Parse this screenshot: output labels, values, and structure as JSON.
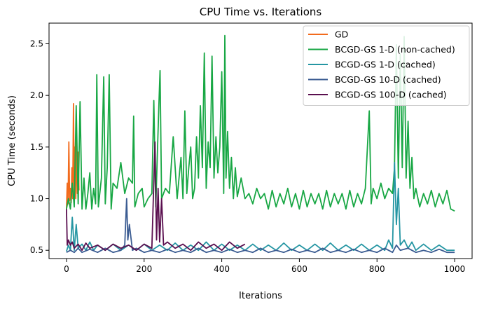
{
  "chart_data": {
    "type": "line",
    "title": "CPU Time vs. Iterations",
    "xlabel": "Iterations",
    "ylabel": "CPU Time (seconds)",
    "xlim": [
      -45,
      1045
    ],
    "ylim": [
      0.42,
      2.7
    ],
    "xticks": [
      0,
      200,
      400,
      600,
      800,
      1000
    ],
    "yticks": [
      0.5,
      1.0,
      1.5,
      2.0,
      2.5
    ],
    "xtick_labels": [
      "0",
      "200",
      "400",
      "600",
      "800",
      "1000"
    ],
    "ytick_labels": [
      "0.5",
      "1.0",
      "1.5",
      "2.0",
      "2.5"
    ],
    "legend_position": "top-right",
    "grid": false,
    "series": [
      {
        "name": "GD",
        "color": "#f26b1d",
        "x": [
          0,
          2,
          4,
          6,
          8,
          10,
          12,
          14,
          16,
          18,
          20,
          22,
          24,
          26,
          28,
          30,
          32
        ],
        "y": [
          0.9,
          1.15,
          0.95,
          1.55,
          0.98,
          1.1,
          0.96,
          1.3,
          1.0,
          1.92,
          1.02,
          1.5,
          1.0,
          1.6,
          1.05,
          1.45,
          1.08
        ]
      },
      {
        "name": "BCGD-GS 1-D (non-cached)",
        "color": "#18a744",
        "x": [
          0,
          5,
          10,
          15,
          20,
          25,
          30,
          35,
          40,
          45,
          50,
          55,
          60,
          65,
          70,
          75,
          78,
          82,
          90,
          96,
          100,
          105,
          110,
          115,
          120,
          130,
          140,
          150,
          160,
          170,
          173,
          176,
          185,
          195,
          200,
          210,
          220,
          225,
          230,
          235,
          238,
          241,
          245,
          255,
          265,
          275,
          285,
          290,
          295,
          300,
          305,
          310,
          315,
          320,
          325,
          330,
          335,
          340,
          345,
          350,
          355,
          360,
          365,
          370,
          375,
          380,
          385,
          390,
          395,
          400,
          405,
          408,
          411,
          415,
          420,
          425,
          430,
          435,
          440,
          450,
          460,
          470,
          480,
          490,
          500,
          510,
          520,
          530,
          540,
          550,
          560,
          570,
          580,
          590,
          600,
          610,
          620,
          630,
          640,
          650,
          660,
          670,
          680,
          690,
          700,
          710,
          720,
          730,
          740,
          750,
          760,
          770,
          780,
          785,
          790,
          800,
          810,
          820,
          830,
          840,
          845,
          850,
          855,
          860,
          865,
          870,
          875,
          880,
          885,
          890,
          895,
          900,
          910,
          920,
          930,
          940,
          950,
          960,
          970,
          980,
          990,
          1000
        ],
        "y": [
          0.9,
          1.0,
          0.9,
          1.15,
          0.92,
          1.9,
          0.95,
          1.94,
          0.9,
          1.2,
          0.9,
          1.05,
          1.25,
          0.9,
          1.1,
          0.95,
          2.2,
          0.92,
          1.2,
          2.18,
          0.95,
          1.3,
          2.2,
          0.9,
          1.15,
          1.1,
          1.35,
          1.05,
          1.2,
          1.15,
          1.8,
          0.92,
          1.05,
          1.1,
          0.92,
          1.0,
          1.05,
          1.95,
          0.92,
          1.55,
          1.9,
          2.24,
          1.0,
          1.1,
          1.05,
          1.6,
          1.0,
          1.2,
          1.4,
          1.0,
          1.85,
          1.05,
          1.3,
          1.5,
          1.0,
          1.1,
          1.6,
          1.2,
          1.9,
          1.3,
          2.41,
          1.1,
          1.55,
          1.3,
          2.38,
          1.2,
          1.6,
          1.25,
          1.5,
          2.23,
          1.05,
          2.58,
          1.2,
          1.65,
          1.1,
          1.4,
          1.0,
          1.3,
          1.02,
          1.2,
          1.0,
          1.05,
          0.95,
          1.1,
          1.0,
          1.05,
          0.9,
          1.08,
          0.92,
          1.05,
          0.95,
          1.1,
          0.92,
          1.05,
          0.9,
          1.08,
          0.92,
          1.05,
          0.95,
          1.05,
          0.9,
          1.08,
          0.92,
          1.05,
          0.95,
          1.05,
          0.9,
          1.08,
          0.92,
          1.05,
          0.95,
          1.1,
          1.85,
          0.95,
          1.1,
          1.0,
          1.15,
          1.0,
          1.1,
          1.05,
          1.3,
          2.49,
          1.2,
          2.4,
          1.3,
          2.57,
          1.2,
          1.75,
          1.1,
          1.4,
          1.0,
          1.1,
          0.92,
          1.05,
          0.95,
          1.08,
          0.92,
          1.05,
          0.95,
          1.08,
          0.9,
          0.88
        ]
      },
      {
        "name": "BCGD-GS 1-D (cached)",
        "color": "#2596a3",
        "x": [
          0,
          5,
          10,
          15,
          20,
          25,
          30,
          40,
          50,
          60,
          70,
          80,
          100,
          120,
          140,
          160,
          180,
          200,
          220,
          240,
          260,
          280,
          300,
          320,
          340,
          360,
          380,
          400,
          420,
          440,
          460,
          480,
          500,
          520,
          540,
          560,
          580,
          600,
          620,
          640,
          660,
          680,
          700,
          720,
          740,
          760,
          780,
          800,
          820,
          830,
          840,
          845,
          850,
          855,
          860,
          870,
          880,
          890,
          900,
          920,
          940,
          960,
          980,
          1000
        ],
        "y": [
          0.49,
          0.55,
          0.5,
          0.82,
          0.5,
          0.75,
          0.52,
          0.56,
          0.5,
          0.58,
          0.5,
          0.55,
          0.5,
          0.56,
          0.5,
          0.55,
          0.5,
          0.56,
          0.5,
          0.55,
          0.5,
          0.57,
          0.5,
          0.55,
          0.5,
          0.58,
          0.5,
          0.56,
          0.5,
          0.55,
          0.5,
          0.56,
          0.5,
          0.55,
          0.5,
          0.57,
          0.5,
          0.55,
          0.5,
          0.56,
          0.5,
          0.57,
          0.5,
          0.55,
          0.5,
          0.56,
          0.5,
          0.55,
          0.5,
          0.6,
          0.52,
          1.35,
          0.75,
          1.1,
          0.55,
          0.6,
          0.52,
          0.58,
          0.5,
          0.56,
          0.5,
          0.55,
          0.5,
          0.5
        ]
      },
      {
        "name": "BCGD-GS 10-D (cached)",
        "color": "#3b5c92",
        "x": [
          0,
          10,
          20,
          30,
          40,
          60,
          80,
          100,
          120,
          140,
          150,
          155,
          158,
          162,
          170,
          180,
          200,
          220,
          240,
          260,
          280,
          300,
          320,
          340,
          360,
          380,
          400,
          420,
          440,
          460,
          480,
          500,
          520,
          540,
          560,
          580,
          600,
          620,
          640,
          660,
          680,
          700,
          720,
          740,
          760,
          780,
          800,
          820,
          840,
          850,
          860,
          880,
          900,
          920,
          940,
          960,
          980,
          1000
        ],
        "y": [
          0.48,
          0.5,
          0.48,
          0.52,
          0.48,
          0.51,
          0.48,
          0.52,
          0.48,
          0.5,
          0.55,
          1.0,
          0.6,
          0.75,
          0.5,
          0.52,
          0.48,
          0.5,
          0.48,
          0.51,
          0.48,
          0.5,
          0.48,
          0.52,
          0.48,
          0.5,
          0.48,
          0.51,
          0.48,
          0.5,
          0.48,
          0.52,
          0.48,
          0.5,
          0.48,
          0.51,
          0.48,
          0.5,
          0.48,
          0.52,
          0.48,
          0.5,
          0.48,
          0.51,
          0.48,
          0.5,
          0.48,
          0.52,
          0.48,
          0.55,
          0.5,
          0.52,
          0.48,
          0.5,
          0.48,
          0.51,
          0.48,
          0.48
        ]
      },
      {
        "name": "BCGD-GS 100-D (cached)",
        "color": "#5a0f4f",
        "x": [
          0,
          2,
          5,
          10,
          15,
          20,
          30,
          40,
          50,
          60,
          80,
          100,
          120,
          140,
          160,
          180,
          200,
          220,
          228,
          232,
          236,
          240,
          245,
          250,
          260,
          280,
          300,
          320,
          340,
          360,
          380,
          400,
          420,
          440,
          460
        ],
        "y": [
          0.9,
          0.55,
          0.6,
          0.55,
          0.58,
          0.52,
          0.56,
          0.5,
          0.57,
          0.52,
          0.55,
          0.5,
          0.56,
          0.52,
          0.55,
          0.5,
          0.56,
          0.52,
          1.55,
          0.6,
          1.1,
          0.58,
          1.0,
          0.55,
          0.58,
          0.52,
          0.56,
          0.5,
          0.58,
          0.52,
          0.56,
          0.5,
          0.58,
          0.52,
          0.56
        ]
      }
    ]
  }
}
